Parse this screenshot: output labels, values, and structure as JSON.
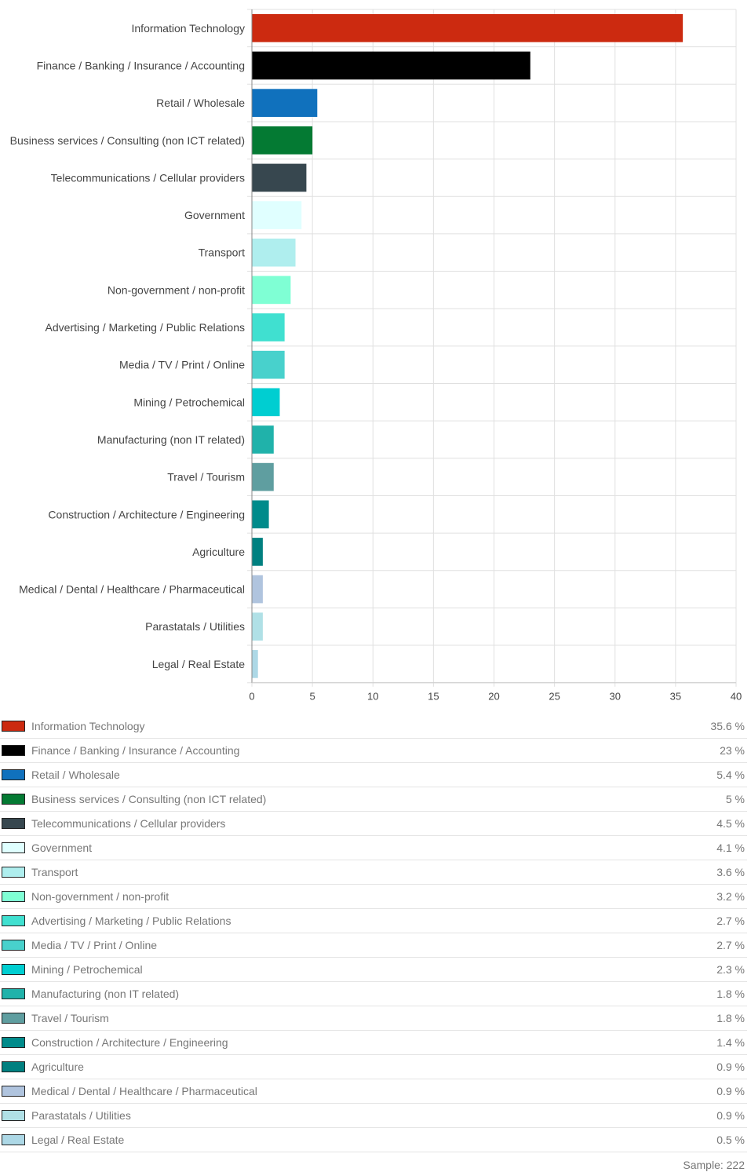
{
  "chart_data": {
    "type": "bar",
    "orientation": "horizontal",
    "categories": [
      "Information Technology",
      "Finance / Banking / Insurance / Accounting",
      "Retail / Wholesale",
      "Business services / Consulting (non ICT related)",
      "Telecommunications / Cellular providers",
      "Government",
      "Transport",
      "Non-government / non-profit",
      "Advertising / Marketing / Public Relations",
      "Media / TV / Print / Online",
      "Mining / Petrochemical",
      "Manufacturing (non IT related)",
      "Travel / Tourism",
      "Construction / Architecture / Engineering",
      "Agriculture",
      "Medical / Dental / Healthcare / Pharmaceutical",
      "Parastatals / Utilities",
      "Legal / Real Estate"
    ],
    "values": [
      35.6,
      23,
      5.4,
      5,
      4.5,
      4.1,
      3.6,
      3.2,
      2.7,
      2.7,
      2.3,
      1.8,
      1.8,
      1.4,
      0.9,
      0.9,
      0.9,
      0.5
    ],
    "colors": [
      "#cc2a10",
      "#000000",
      "#1071bd",
      "#047a33",
      "#37474f",
      "#e0ffff",
      "#afeeee",
      "#7fffd4",
      "#40e0d0",
      "#48d1cc",
      "#00ced1",
      "#20b2aa",
      "#5f9ea0",
      "#008b8b",
      "#008080",
      "#b0c4de",
      "#b0e0e6",
      "#add8e6"
    ],
    "value_labels": [
      "35.6 %",
      "23 %",
      "5.4 %",
      "5 %",
      "4.5 %",
      "4.1 %",
      "3.6 %",
      "3.2 %",
      "2.7 %",
      "2.7 %",
      "2.3 %",
      "1.8 %",
      "1.8 %",
      "1.4 %",
      "0.9 %",
      "0.9 %",
      "0.9 %",
      "0.5 %"
    ],
    "xlim": [
      0,
      40
    ],
    "xticks": [
      "0",
      "5",
      "10",
      "15",
      "20",
      "25",
      "30",
      "35",
      "40"
    ],
    "grid": true,
    "legend": "bottom"
  },
  "sample_label": "Sample: 222"
}
